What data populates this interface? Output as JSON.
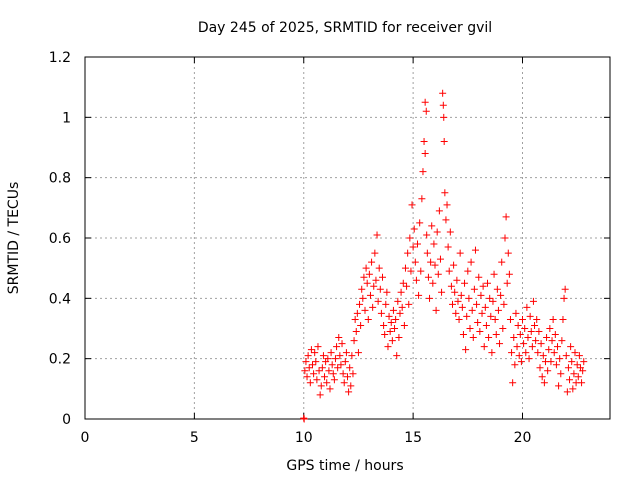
{
  "chart_data": {
    "type": "scatter",
    "title": "Day 245 of 2025, SRMTID for receiver gvil",
    "xlabel": "GPS time / hours",
    "ylabel": "SRMTID / TECUs",
    "xlim": [
      0,
      24
    ],
    "ylim": [
      0,
      1.2
    ],
    "x_ticks": [
      0,
      5,
      10,
      15,
      20
    ],
    "x_tick_labels": [
      "0",
      "5",
      "10",
      "15",
      "20"
    ],
    "y_ticks": [
      0,
      0.2,
      0.4,
      0.6,
      0.8,
      1.0,
      1.2
    ],
    "y_tick_labels": [
      "0",
      "0.2",
      "0.4",
      "0.6",
      "0.8",
      "1",
      "1.2"
    ],
    "grid": true,
    "marker": "+",
    "series": [
      {
        "name": "SRMTID",
        "color": "#ff0000",
        "points": [
          [
            10.0,
            0.003
          ],
          [
            10.02,
            0.0
          ],
          [
            10.05,
            0.16
          ],
          [
            10.1,
            0.19
          ],
          [
            10.15,
            0.14
          ],
          [
            10.2,
            0.21
          ],
          [
            10.25,
            0.17
          ],
          [
            10.3,
            0.12
          ],
          [
            10.35,
            0.23
          ],
          [
            10.4,
            0.18
          ],
          [
            10.45,
            0.15
          ],
          [
            10.5,
            0.22
          ],
          [
            10.55,
            0.19
          ],
          [
            10.6,
            0.13
          ],
          [
            10.65,
            0.24
          ],
          [
            10.7,
            0.16
          ],
          [
            10.75,
            0.08
          ],
          [
            10.8,
            0.11
          ],
          [
            10.85,
            0.17
          ],
          [
            10.9,
            0.21
          ],
          [
            10.95,
            0.14
          ],
          [
            11.0,
            0.19
          ],
          [
            11.05,
            0.12
          ],
          [
            11.1,
            0.2
          ],
          [
            11.15,
            0.16
          ],
          [
            11.2,
            0.1
          ],
          [
            11.25,
            0.22
          ],
          [
            11.3,
            0.18
          ],
          [
            11.35,
            0.15
          ],
          [
            11.4,
            0.13
          ],
          [
            11.45,
            0.2
          ],
          [
            11.5,
            0.24
          ],
          [
            11.55,
            0.17
          ],
          [
            11.6,
            0.27
          ],
          [
            11.65,
            0.21
          ],
          [
            11.7,
            0.18
          ],
          [
            11.75,
            0.25
          ],
          [
            11.8,
            0.15
          ],
          [
            11.85,
            0.12
          ],
          [
            11.9,
            0.19
          ],
          [
            11.95,
            0.22
          ],
          [
            12.0,
            0.14
          ],
          [
            12.05,
            0.09
          ],
          [
            12.1,
            0.17
          ],
          [
            12.15,
            0.11
          ],
          [
            12.2,
            0.21
          ],
          [
            12.25,
            0.15
          ],
          [
            12.3,
            0.26
          ],
          [
            12.35,
            0.33
          ],
          [
            12.4,
            0.29
          ],
          [
            12.45,
            0.35
          ],
          [
            12.5,
            0.22
          ],
          [
            12.55,
            0.38
          ],
          [
            12.6,
            0.31
          ],
          [
            12.65,
            0.43
          ],
          [
            12.7,
            0.4
          ],
          [
            12.75,
            0.47
          ],
          [
            12.8,
            0.36
          ],
          [
            12.85,
            0.5
          ],
          [
            12.9,
            0.45
          ],
          [
            12.95,
            0.33
          ],
          [
            13.0,
            0.48
          ],
          [
            13.05,
            0.41
          ],
          [
            13.1,
            0.52
          ],
          [
            13.15,
            0.37
          ],
          [
            13.2,
            0.44
          ],
          [
            13.25,
            0.55
          ],
          [
            13.3,
            0.46
          ],
          [
            13.35,
            0.61
          ],
          [
            13.4,
            0.39
          ],
          [
            13.45,
            0.5
          ],
          [
            13.5,
            0.43
          ],
          [
            13.55,
            0.35
          ],
          [
            13.6,
            0.47
          ],
          [
            13.65,
            0.31
          ],
          [
            13.7,
            0.28
          ],
          [
            13.75,
            0.38
          ],
          [
            13.8,
            0.42
          ],
          [
            13.85,
            0.24
          ],
          [
            13.9,
            0.34
          ],
          [
            13.95,
            0.29
          ],
          [
            14.0,
            0.32
          ],
          [
            14.05,
            0.26
          ],
          [
            14.1,
            0.36
          ],
          [
            14.15,
            0.3
          ],
          [
            14.2,
            0.33
          ],
          [
            14.25,
            0.21
          ],
          [
            14.3,
            0.39
          ],
          [
            14.35,
            0.27
          ],
          [
            14.4,
            0.35
          ],
          [
            14.45,
            0.42
          ],
          [
            14.5,
            0.37
          ],
          [
            14.55,
            0.45
          ],
          [
            14.6,
            0.31
          ],
          [
            14.65,
            0.5
          ],
          [
            14.7,
            0.44
          ],
          [
            14.75,
            0.55
          ],
          [
            14.8,
            0.38
          ],
          [
            14.85,
            0.6
          ],
          [
            14.9,
            0.49
          ],
          [
            14.95,
            0.71
          ],
          [
            15.0,
            0.57
          ],
          [
            15.05,
            0.63
          ],
          [
            15.1,
            0.52
          ],
          [
            15.15,
            0.46
          ],
          [
            15.2,
            0.58
          ],
          [
            15.25,
            0.41
          ],
          [
            15.3,
            0.65
          ],
          [
            15.35,
            0.49
          ],
          [
            15.4,
            0.73
          ],
          [
            15.45,
            0.82
          ],
          [
            15.5,
            0.92
          ],
          [
            15.55,
            1.05
          ],
          [
            15.6,
            1.02
          ],
          [
            15.55,
            0.88
          ],
          [
            15.62,
            0.61
          ],
          [
            15.65,
            0.55
          ],
          [
            15.7,
            0.47
          ],
          [
            15.75,
            0.4
          ],
          [
            15.8,
            0.52
          ],
          [
            15.85,
            0.64
          ],
          [
            15.9,
            0.45
          ],
          [
            15.95,
            0.58
          ],
          [
            16.0,
            0.51
          ],
          [
            16.05,
            0.36
          ],
          [
            16.1,
            0.62
          ],
          [
            16.15,
            0.48
          ],
          [
            16.2,
            0.69
          ],
          [
            16.25,
            0.53
          ],
          [
            16.3,
            0.42
          ],
          [
            16.35,
            1.08
          ],
          [
            16.38,
            1.04
          ],
          [
            16.4,
            1.0
          ],
          [
            16.42,
            0.92
          ],
          [
            16.45,
            0.75
          ],
          [
            16.5,
            0.66
          ],
          [
            16.55,
            0.71
          ],
          [
            16.6,
            0.57
          ],
          [
            16.65,
            0.49
          ],
          [
            16.7,
            0.62
          ],
          [
            16.75,
            0.44
          ],
          [
            16.8,
            0.38
          ],
          [
            16.85,
            0.51
          ],
          [
            16.9,
            0.42
          ],
          [
            16.95,
            0.35
          ],
          [
            17.0,
            0.46
          ],
          [
            17.05,
            0.39
          ],
          [
            17.1,
            0.33
          ],
          [
            17.15,
            0.55
          ],
          [
            17.2,
            0.41
          ],
          [
            17.25,
            0.37
          ],
          [
            17.3,
            0.28
          ],
          [
            17.35,
            0.45
          ],
          [
            17.4,
            0.23
          ],
          [
            17.45,
            0.34
          ],
          [
            17.5,
            0.49
          ],
          [
            17.55,
            0.4
          ],
          [
            17.6,
            0.3
          ],
          [
            17.65,
            0.52
          ],
          [
            17.7,
            0.36
          ],
          [
            17.75,
            0.27
          ],
          [
            17.8,
            0.43
          ],
          [
            17.85,
            0.56
          ],
          [
            17.9,
            0.38
          ],
          [
            17.95,
            0.32
          ],
          [
            18.0,
            0.47
          ],
          [
            18.05,
            0.29
          ],
          [
            18.1,
            0.41
          ],
          [
            18.15,
            0.35
          ],
          [
            18.2,
            0.44
          ],
          [
            18.25,
            0.24
          ],
          [
            18.3,
            0.37
          ],
          [
            18.35,
            0.31
          ],
          [
            18.4,
            0.45
          ],
          [
            18.45,
            0.27
          ],
          [
            18.5,
            0.4
          ],
          [
            18.55,
            0.34
          ],
          [
            18.6,
            0.22
          ],
          [
            18.65,
            0.39
          ],
          [
            18.7,
            0.48
          ],
          [
            18.75,
            0.33
          ],
          [
            18.8,
            0.28
          ],
          [
            18.85,
            0.43
          ],
          [
            18.9,
            0.36
          ],
          [
            18.95,
            0.25
          ],
          [
            19.0,
            0.41
          ],
          [
            19.05,
            0.52
          ],
          [
            19.1,
            0.3
          ],
          [
            19.15,
            0.38
          ],
          [
            19.2,
            0.6
          ],
          [
            19.25,
            0.67
          ],
          [
            19.3,
            0.45
          ],
          [
            19.35,
            0.55
          ],
          [
            19.4,
            0.48
          ],
          [
            19.45,
            0.33
          ],
          [
            19.5,
            0.22
          ],
          [
            19.55,
            0.12
          ],
          [
            19.6,
            0.27
          ],
          [
            19.65,
            0.18
          ],
          [
            19.7,
            0.35
          ],
          [
            19.75,
            0.24
          ],
          [
            19.8,
            0.31
          ],
          [
            19.85,
            0.21
          ],
          [
            19.9,
            0.28
          ],
          [
            19.95,
            0.19
          ],
          [
            20.0,
            0.33
          ],
          [
            20.05,
            0.25
          ],
          [
            20.1,
            0.3
          ],
          [
            20.15,
            0.22
          ],
          [
            20.2,
            0.37
          ],
          [
            20.25,
            0.27
          ],
          [
            20.3,
            0.2
          ],
          [
            20.35,
            0.34
          ],
          [
            20.4,
            0.29
          ],
          [
            20.45,
            0.24
          ],
          [
            20.5,
            0.39
          ],
          [
            20.55,
            0.31
          ],
          [
            20.6,
            0.26
          ],
          [
            20.65,
            0.33
          ],
          [
            20.7,
            0.22
          ],
          [
            20.75,
            0.29
          ],
          [
            20.8,
            0.17
          ],
          [
            20.85,
            0.25
          ],
          [
            20.9,
            0.14
          ],
          [
            20.95,
            0.21
          ],
          [
            21.0,
            0.12
          ],
          [
            21.05,
            0.19
          ],
          [
            21.1,
            0.27
          ],
          [
            21.15,
            0.16
          ],
          [
            21.2,
            0.23
          ],
          [
            21.25,
            0.3
          ],
          [
            21.3,
            0.19
          ],
          [
            21.35,
            0.26
          ],
          [
            21.4,
            0.33
          ],
          [
            21.45,
            0.22
          ],
          [
            21.5,
            0.28
          ],
          [
            21.55,
            0.18
          ],
          [
            21.6,
            0.24
          ],
          [
            21.65,
            0.11
          ],
          [
            21.7,
            0.2
          ],
          [
            21.75,
            0.15
          ],
          [
            21.8,
            0.26
          ],
          [
            21.85,
            0.33
          ],
          [
            21.9,
            0.4
          ],
          [
            21.95,
            0.43
          ],
          [
            22.0,
            0.21
          ],
          [
            22.05,
            0.09
          ],
          [
            22.1,
            0.17
          ],
          [
            22.15,
            0.13
          ],
          [
            22.2,
            0.24
          ],
          [
            22.25,
            0.19
          ],
          [
            22.3,
            0.1
          ],
          [
            22.35,
            0.15
          ],
          [
            22.4,
            0.22
          ],
          [
            22.45,
            0.12
          ],
          [
            22.5,
            0.18
          ],
          [
            22.55,
            0.14
          ],
          [
            22.6,
            0.21
          ],
          [
            22.65,
            0.17
          ],
          [
            22.7,
            0.12
          ],
          [
            22.75,
            0.16
          ],
          [
            22.8,
            0.19
          ]
        ]
      }
    ]
  }
}
